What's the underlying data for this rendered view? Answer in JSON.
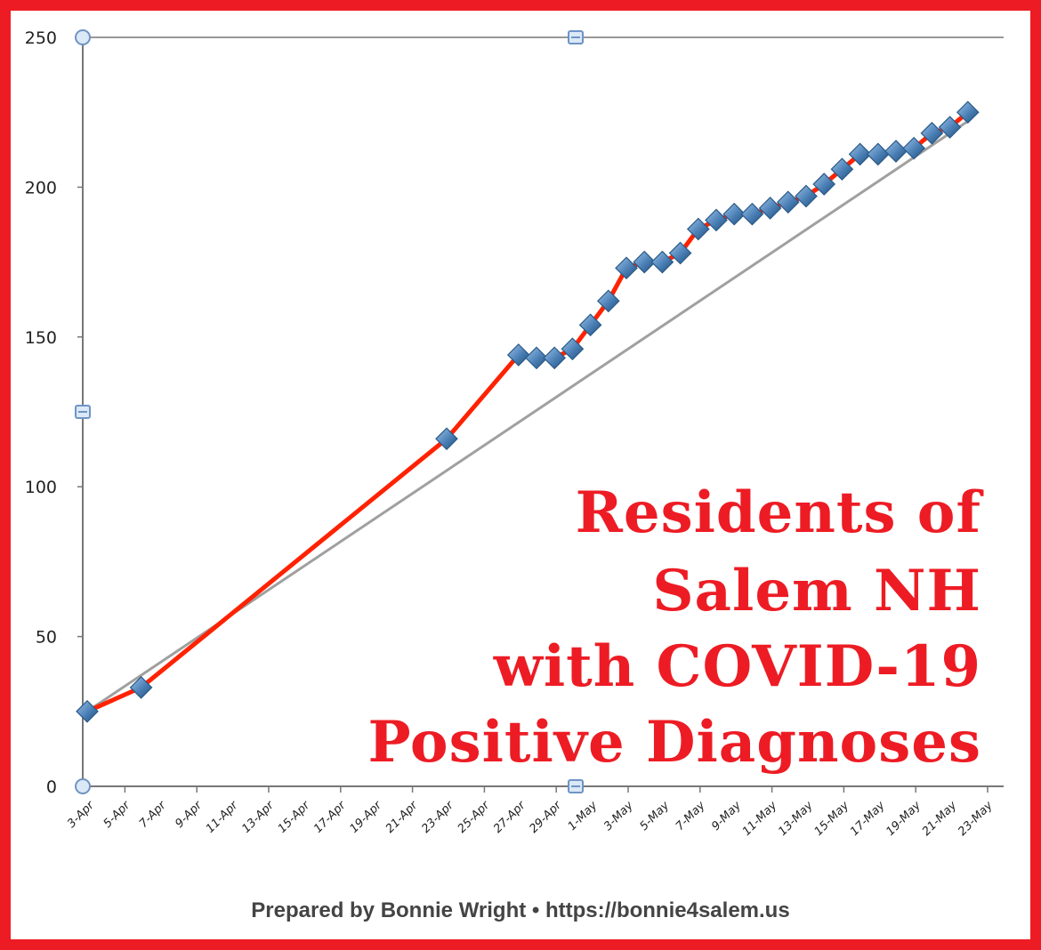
{
  "footer": "Prepared by Bonnie Wright • https://bonnie4salem.us",
  "colors": {
    "border": "#ed1c24",
    "line": "#ff2200",
    "marker": "#4a7fb5",
    "trendline": "#a0a0a0",
    "title": "#ed1c24"
  },
  "chart_data": {
    "type": "line",
    "title_lines": [
      "Residents of",
      "Salem NH",
      "with COVID-19",
      "Positive Diagnoses"
    ],
    "xlabel": "",
    "ylabel": "",
    "ylim": [
      0,
      250
    ],
    "yticks": [
      0,
      50,
      100,
      150,
      200,
      250
    ],
    "x_tick_labels": [
      "3-Apr",
      "5-Apr",
      "7-Apr",
      "9-Apr",
      "11-Apr",
      "13-Apr",
      "15-Apr",
      "17-Apr",
      "19-Apr",
      "21-Apr",
      "23-Apr",
      "25-Apr",
      "27-Apr",
      "29-Apr",
      "1-May",
      "3-May",
      "5-May",
      "7-May",
      "9-May",
      "11-May",
      "13-May",
      "15-May",
      "17-May",
      "19-May",
      "21-May",
      "23-May"
    ],
    "grid": "top border line only",
    "series": [
      {
        "x": [
          "3-Apr",
          "6-Apr",
          "23-Apr",
          "27-Apr",
          "28-Apr",
          "29-Apr",
          "30-Apr",
          "1-May",
          "2-May",
          "3-May",
          "4-May",
          "5-May",
          "6-May",
          "7-May",
          "8-May",
          "9-May",
          "10-May",
          "11-May",
          "12-May",
          "13-May",
          "14-May",
          "15-May",
          "16-May",
          "17-May",
          "18-May",
          "19-May",
          "20-May",
          "21-May",
          "22-May"
        ],
        "values": [
          25,
          33,
          116,
          144,
          143,
          143,
          146,
          154,
          162,
          173,
          175,
          175,
          178,
          186,
          189,
          191,
          191,
          193,
          195,
          197,
          201,
          206,
          211,
          211,
          212,
          213,
          218,
          220,
          225
        ]
      }
    ],
    "trendline": {
      "x": [
        "3-Apr",
        "22-May"
      ],
      "values": [
        25,
        222
      ]
    }
  }
}
